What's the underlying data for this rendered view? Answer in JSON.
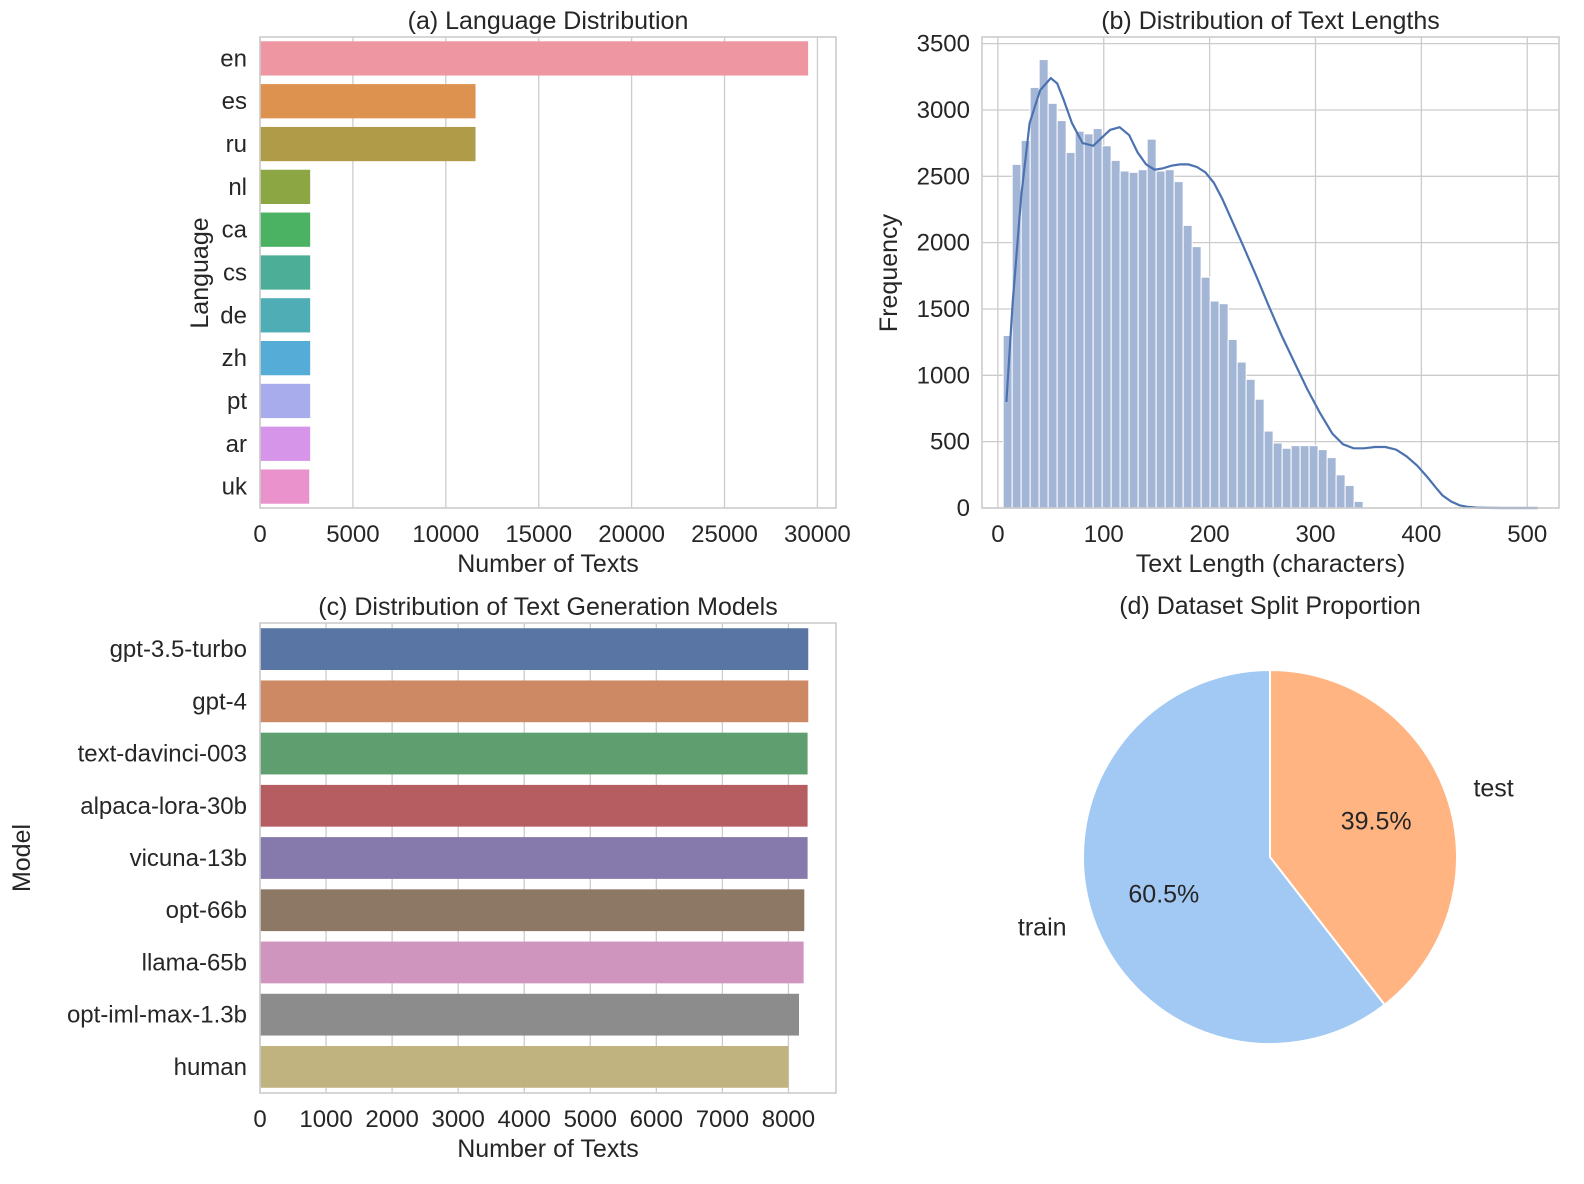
{
  "chart_data": [
    {
      "type": "bar",
      "orientation": "horizontal",
      "title": "(a) Language Distribution",
      "xlabel": "Number of Texts",
      "ylabel": "Language",
      "categories": [
        "en",
        "es",
        "ru",
        "nl",
        "ca",
        "cs",
        "de",
        "zh",
        "pt",
        "ar",
        "uk"
      ],
      "values": [
        29500,
        11600,
        11600,
        2700,
        2700,
        2700,
        2700,
        2700,
        2700,
        2700,
        2650
      ],
      "colors": [
        "#ee96a2",
        "#de924f",
        "#b09c48",
        "#8ca644",
        "#4bb263",
        "#4cae96",
        "#4faeb5",
        "#55acd7",
        "#a8aced",
        "#d695e8",
        "#ea92cb"
      ],
      "xlim": [
        0,
        31000
      ],
      "xticks": [
        0,
        5000,
        10000,
        15000,
        20000,
        25000,
        30000
      ],
      "grid": true
    },
    {
      "type": "histogram",
      "title": "(b) Distribution of Text Lengths",
      "xlabel": "Text Length (characters)",
      "ylabel": "Frequency",
      "bin_start": 5,
      "bin_width": 8.5,
      "values": [
        1300,
        2590,
        2770,
        3170,
        3380,
        3050,
        2920,
        2680,
        2840,
        2820,
        2860,
        2730,
        2620,
        2540,
        2530,
        2550,
        2780,
        2540,
        2550,
        2460,
        2130,
        1970,
        1740,
        1560,
        1540,
        1270,
        1100,
        970,
        820,
        580,
        490,
        450,
        470,
        470,
        470,
        440,
        380,
        250,
        170,
        50
      ],
      "kde": {
        "x": [
          8,
          14,
          22,
          30,
          40,
          50,
          56,
          62,
          70,
          80,
          90,
          98,
          106,
          115,
          124,
          132,
          140,
          148,
          156,
          164,
          172,
          180,
          188,
          196,
          204,
          212,
          222,
          232,
          244,
          256,
          268,
          280,
          292,
          304,
          316,
          326,
          336,
          346,
          356,
          366,
          376,
          386,
          396,
          406,
          414,
          420,
          428,
          436,
          444,
          452,
          462,
          475,
          490,
          510
        ],
        "y": [
          800,
          1550,
          2350,
          2900,
          3150,
          3240,
          3200,
          3080,
          2900,
          2750,
          2730,
          2790,
          2850,
          2870,
          2810,
          2680,
          2590,
          2550,
          2560,
          2580,
          2590,
          2590,
          2570,
          2530,
          2450,
          2330,
          2150,
          1970,
          1750,
          1520,
          1300,
          1100,
          900,
          720,
          560,
          480,
          450,
          450,
          460,
          460,
          440,
          390,
          320,
          230,
          150,
          95,
          50,
          20,
          8,
          3,
          1,
          0,
          0,
          0
        ]
      },
      "color": "#4c72b0",
      "xlim": [
        -15,
        530
      ],
      "ylim": [
        0,
        3550
      ],
      "xticks": [
        0,
        100,
        200,
        300,
        400,
        500
      ],
      "yticks": [
        0,
        500,
        1000,
        1500,
        2000,
        2500,
        3000,
        3500
      ],
      "grid": true
    },
    {
      "type": "bar",
      "orientation": "horizontal",
      "title": "(c) Distribution of Text Generation Models",
      "xlabel": "Number of Texts",
      "ylabel": "Model",
      "categories": [
        "gpt-3.5-turbo",
        "gpt-4",
        "text-davinci-003",
        "alpaca-lora-30b",
        "vicuna-13b",
        "opt-66b",
        "llama-65b",
        "opt-iml-max-1.3b",
        "human"
      ],
      "values": [
        8300,
        8300,
        8290,
        8290,
        8290,
        8240,
        8230,
        8160,
        8000
      ],
      "colors": [
        "#5975a4",
        "#cc8963",
        "#5f9e6e",
        "#b55d60",
        "#857aab",
        "#8d7866",
        "#d095bf",
        "#8c8c8c",
        "#c1b37f"
      ],
      "xlim": [
        0,
        8720
      ],
      "xticks": [
        0,
        1000,
        2000,
        3000,
        4000,
        5000,
        6000,
        7000,
        8000
      ],
      "grid": true
    },
    {
      "type": "pie",
      "title": "(d) Dataset Split Proportion",
      "labels": [
        "test",
        "train"
      ],
      "values": [
        39.5,
        60.5
      ],
      "value_labels": [
        "39.5%",
        "60.5%"
      ],
      "colors": [
        "#ffb482",
        "#a1c9f4"
      ],
      "start_angle": 90,
      "direction": "clockwise"
    }
  ]
}
